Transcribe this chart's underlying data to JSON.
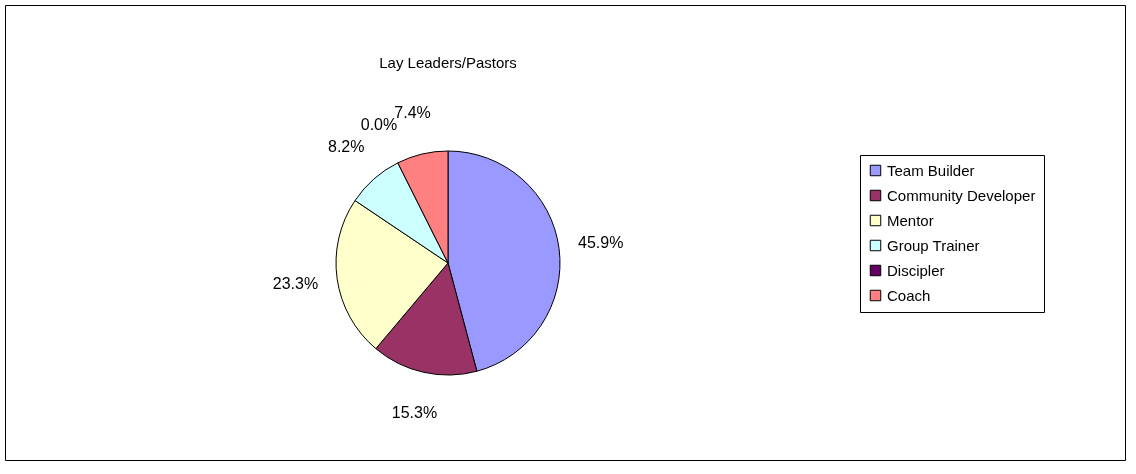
{
  "chart_data": {
    "type": "pie",
    "title": "Lay Leaders/Pastors",
    "categories": [
      "Team Builder",
      "Community Developer",
      "Mentor",
      "Group Trainer",
      "Discipler",
      "Coach"
    ],
    "values": [
      45.9,
      15.3,
      23.3,
      8.2,
      0.0,
      7.4
    ],
    "colors": [
      "#9999ff",
      "#993366",
      "#ffffcc",
      "#ccffff",
      "#660066",
      "#ff8080"
    ],
    "value_labels": [
      "45.9%",
      "15.3%",
      "23.3%",
      "8.2%",
      "0.0%",
      "7.4%"
    ],
    "legend": "right"
  }
}
